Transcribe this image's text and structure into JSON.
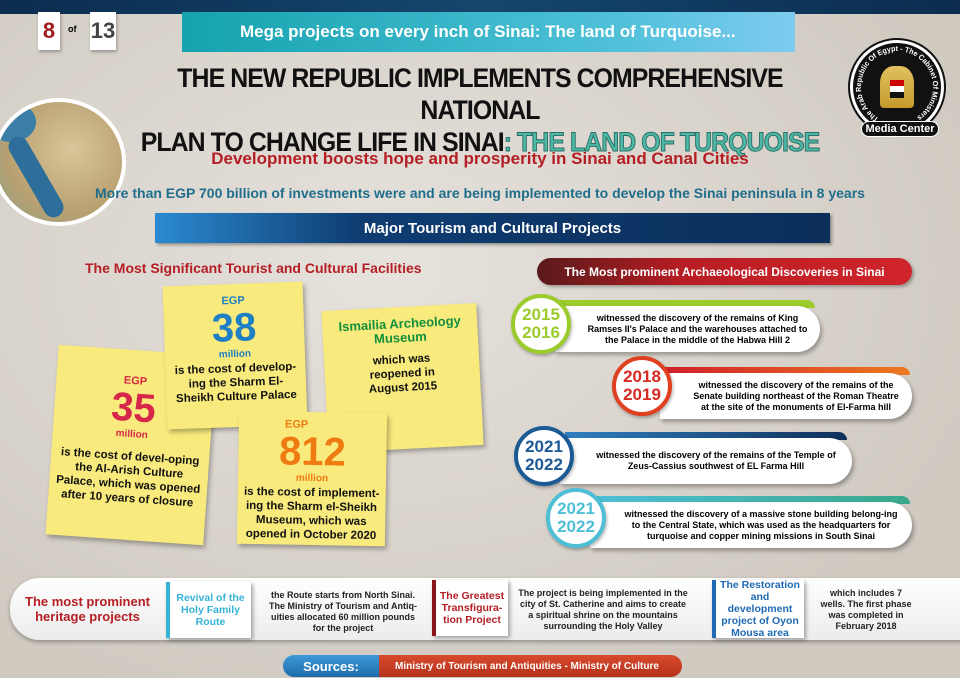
{
  "page": {
    "current": "8",
    "of_label": "of",
    "total": "13"
  },
  "series_banner": "Mega projects on every inch of Sinai: The land of Turquoise...",
  "title": {
    "line1": "THE NEW REPUBLIC IMPLEMENTS COMPREHENSIVE NATIONAL",
    "line2_black": "PLAN TO CHANGE LIFE IN SINAI",
    "line2_sep": ": ",
    "line2_turquoise": "THE LAND OF TURQUOISE"
  },
  "logo": {
    "ring_text": "The Arab Republic Of Egypt - The Cabinet Of Ministers",
    "label": "Media Center"
  },
  "subtitle": "Development boosts hope and prosperity in Sinai and Canal Cities",
  "investment_line": "More than EGP 700 billion of investments were and are being implemented to develop the Sinai peninsula in 8 years",
  "section_banner": "Major Tourism and Cultural Projects",
  "facilities": {
    "heading": "The Most Significant Tourist and Cultural Facilities",
    "notes": [
      {
        "currency": "EGP",
        "value": "35",
        "unit": "million",
        "text": "is the cost of devel-oping the Al-Arish Culture Palace, which was opened after 10 years of closure",
        "color": "#d8264a"
      },
      {
        "currency": "EGP",
        "value": "38",
        "unit": "million",
        "text": "is the cost of develop-ing the Sharm El-Sheikh Culture Palace",
        "color": "#1f7fc4"
      },
      {
        "title": "Ismailia Archeology Museum",
        "text": "which was reopened in August 2015",
        "color": "#13903c"
      },
      {
        "currency": "EGP",
        "value": "812",
        "unit": "million",
        "text": "is the cost of implement-ing the Sharm el-Sheikh Museum, which was opened in October 2020",
        "color": "#f07b12"
      }
    ]
  },
  "discoveries": {
    "heading": "The Most prominent Archaeological Discoveries in Sinai",
    "items": [
      {
        "year1": "2015",
        "year2": "2016",
        "text": "witnessed the discovery of the remains of King Ramses II's Palace and the warehouses attached to the Palace in the middle of the Habwa Hill 2",
        "color": "#9ccb2c"
      },
      {
        "year1": "2018",
        "year2": "2019",
        "text": "witnessed the discovery of the remains of the Senate building northeast of the Roman Theatre at the site of the monuments of El-Farma hill",
        "color": "#e0401f"
      },
      {
        "year1": "2021",
        "year2": "2022",
        "text": "witnessed the discovery of the remains of the Temple of Zeus-Cassius southwest of EL Farma Hill",
        "color": "#1c5a96"
      },
      {
        "year1": "2021",
        "year2": "2022",
        "text": "witnessed the discovery of a massive stone building belong-ing to the Central State, which was used as the headquarters for turquoise and copper mining missions in South Sinai",
        "color": "#4fbfd6"
      }
    ]
  },
  "heritage": {
    "label": "The most prominent heritage projects",
    "projects": [
      {
        "name": "Revival of the Holy Family Route",
        "text": "the Route starts from North Sinai. The Ministry of Tourism and Antiq-uities allocated 60 million pounds for the project",
        "color": "#35b3d6"
      },
      {
        "name": "The Greatest Transfigura-tion Project",
        "text": "The project is being implemented in the city of St. Catherine and aims to create a spiritual shrine on the mountains surrounding the Holy Valley",
        "color": "#b41e24"
      },
      {
        "name": "The Restoration and development project of Oyon Mousa area",
        "text": "which includes 7 wells. The first phase was completed in February 2018",
        "color": "#1f6ab4"
      }
    ]
  },
  "sources": {
    "label": "Sources:",
    "text": "Ministry of Tourism and Antiquities - Ministry of Culture"
  }
}
